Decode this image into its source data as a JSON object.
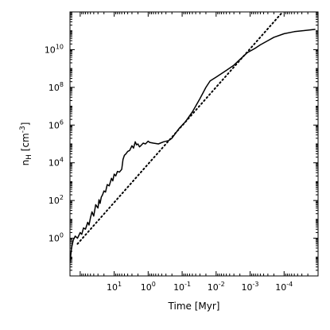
{
  "chart_data": {
    "type": "line",
    "title": "",
    "xlabel": "Time [Myr]",
    "ylabel": "n_H [cm^-3]",
    "ylabel_parts": {
      "base": "n",
      "sub": "H",
      "bracket_open": "[cm",
      "sup": "-3",
      "bracket_close": "]"
    },
    "x_axis": {
      "scale": "log",
      "inverted": true,
      "unit_note": "time before end, decreasing to the right",
      "xlim": [
        200,
        1e-05
      ],
      "tick_labels": [
        {
          "mantissa": "10",
          "exp": "1",
          "value": 10
        },
        {
          "mantissa": "10",
          "exp": "0",
          "value": 1
        },
        {
          "mantissa": "10",
          "exp": "-1",
          "value": 0.1
        },
        {
          "mantissa": "10",
          "exp": "-2",
          "value": 0.01
        },
        {
          "mantissa": "10",
          "exp": "-3",
          "value": 0.001
        },
        {
          "mantissa": "10",
          "exp": "-4",
          "value": 0.0001
        }
      ]
    },
    "y_axis": {
      "scale": "log",
      "ylim": [
        0.01,
        1000000000000.0
      ],
      "tick_labels": [
        {
          "mantissa": "10",
          "exp": "0",
          "value": 1
        },
        {
          "mantissa": "10",
          "exp": "2",
          "value": 100
        },
        {
          "mantissa": "10",
          "exp": "4",
          "value": 10000
        },
        {
          "mantissa": "10",
          "exp": "6",
          "value": 1000000
        },
        {
          "mantissa": "10",
          "exp": "8",
          "value": 100000000
        },
        {
          "mantissa": "10",
          "exp": "10",
          "value": 10000000000
        }
      ]
    },
    "grid": false,
    "legend": false,
    "series": [
      {
        "style": "solid",
        "color": "#000000",
        "points": [
          [
            200,
            0.05
          ],
          [
            180,
            0.3
          ],
          [
            160,
            0.8
          ],
          [
            140,
            1.3
          ],
          [
            120,
            1.0
          ],
          [
            100,
            2.0
          ],
          [
            90,
            1.6
          ],
          [
            80,
            3.5
          ],
          [
            70,
            3.0
          ],
          [
            60,
            7
          ],
          [
            55,
            5
          ],
          [
            50,
            12
          ],
          [
            45,
            25
          ],
          [
            40,
            15
          ],
          [
            35,
            60
          ],
          [
            30,
            40
          ],
          [
            28,
            110
          ],
          [
            26,
            70
          ],
          [
            24,
            150
          ],
          [
            22,
            200
          ],
          [
            20,
            320
          ],
          [
            18,
            280
          ],
          [
            16,
            700
          ],
          [
            14,
            600
          ],
          [
            12,
            1500
          ],
          [
            11,
            1100
          ],
          [
            10,
            2500
          ],
          [
            9,
            2000
          ],
          [
            8,
            3500
          ],
          [
            7,
            3200
          ],
          [
            6,
            4500
          ],
          [
            5.5,
            15000
          ],
          [
            5,
            25000
          ],
          [
            4.5,
            30000
          ],
          [
            4,
            40000
          ],
          [
            3.5,
            45000
          ],
          [
            3,
            80000
          ],
          [
            2.7,
            60000
          ],
          [
            2.4,
            130000
          ],
          [
            2.2,
            90000
          ],
          [
            2,
            100000
          ],
          [
            1.8,
            70000
          ],
          [
            1.6,
            85000
          ],
          [
            1.4,
            110000
          ],
          [
            1.2,
            100000
          ],
          [
            1.0,
            140000
          ],
          [
            0.9,
            120000
          ],
          [
            0.7,
            110000
          ],
          [
            0.5,
            100000
          ],
          [
            0.35,
            130000
          ],
          [
            0.25,
            150000
          ],
          [
            0.2,
            200000
          ],
          [
            0.12,
            700000
          ],
          [
            0.08,
            1500000
          ],
          [
            0.05,
            5000000
          ],
          [
            0.03,
            25000000
          ],
          [
            0.02,
            100000000
          ],
          [
            0.015,
            220000000
          ],
          [
            0.01,
            350000000
          ],
          [
            0.005,
            800000000
          ],
          [
            0.003,
            1500000000
          ],
          [
            0.002,
            3000000000
          ],
          [
            0.0012,
            7000000000
          ],
          [
            0.0007,
            12000000000
          ],
          [
            0.0005,
            18000000000
          ],
          [
            0.0003,
            30000000000
          ],
          [
            0.0002,
            45000000000
          ],
          [
            0.0001,
            70000000000
          ],
          [
            5e-05,
            90000000000
          ],
          [
            1.2e-05,
            120000000000
          ]
        ]
      },
      {
        "style": "dotted",
        "color": "#000000",
        "points": [
          [
            120,
            0.5
          ],
          [
            0.00011,
            1000000000000.0
          ]
        ]
      }
    ]
  }
}
